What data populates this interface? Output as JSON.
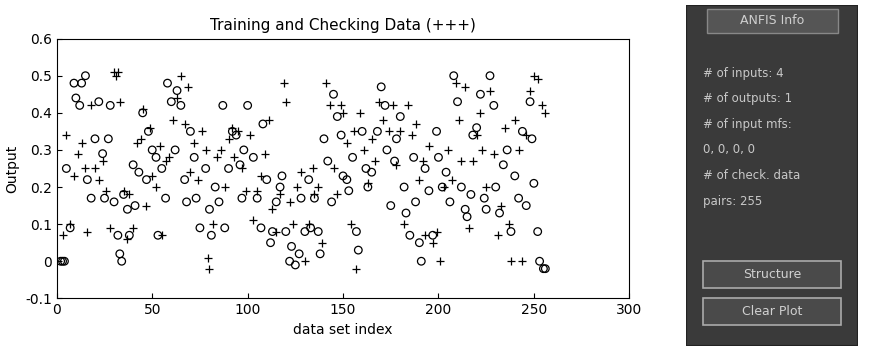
{
  "chart_data": {
    "type": "scatter",
    "title": "Training and Checking Data (+++)",
    "x_label": "data set index",
    "y_label": "Output",
    "xlim": [
      0,
      300
    ],
    "xticks": [
      0,
      50,
      100,
      150,
      200,
      250,
      300
    ],
    "ylim": [
      -0.1,
      0.6
    ],
    "yticks": [
      -0.1,
      0,
      0.1,
      0.2,
      0.3,
      0.4,
      0.5,
      0.6
    ],
    "grid": false,
    "series": [
      {
        "color": "#000000",
        "marker": "o",
        "x": [
          2,
          3,
          4,
          5,
          7,
          9,
          10,
          12,
          13,
          15,
          16,
          18,
          20,
          22,
          24,
          25,
          27,
          28,
          30,
          32,
          33,
          34,
          35,
          37,
          38,
          40,
          41,
          43,
          45,
          47,
          48,
          50,
          52,
          53,
          55,
          57,
          58,
          60,
          62,
          63,
          65,
          67,
          68,
          70,
          72,
          73,
          75,
          78,
          80,
          81,
          83,
          85,
          87,
          88,
          90,
          92,
          94,
          96,
          97,
          98,
          100,
          103,
          105,
          107,
          108,
          110,
          112,
          113,
          115,
          117,
          118,
          120,
          122,
          123,
          125,
          127,
          128,
          130,
          132,
          133,
          135,
          137,
          138,
          140,
          142,
          144,
          145,
          147,
          149,
          150,
          152,
          153,
          155,
          157,
          158,
          160,
          162,
          163,
          165,
          168,
          170,
          172,
          173,
          175,
          177,
          178,
          180,
          182,
          183,
          185,
          187,
          188,
          190,
          191,
          193,
          195,
          197,
          199,
          200,
          202,
          204,
          206,
          208,
          210,
          212,
          214,
          215,
          217,
          218,
          220,
          222,
          224,
          225,
          227,
          229,
          230,
          232,
          234,
          236,
          238,
          240,
          242,
          244,
          246,
          248,
          249,
          250,
          252,
          253,
          255,
          256
        ],
        "values": [
          0,
          0,
          0,
          0.25,
          0.09,
          0.48,
          0.44,
          0.42,
          0.48,
          0.5,
          0.22,
          0.17,
          0.33,
          0.43,
          0.29,
          0.17,
          0.33,
          0.42,
          0.16,
          0.07,
          0.02,
          0.0,
          0.18,
          0.14,
          0.07,
          0.26,
          0.15,
          0.24,
          0.4,
          0.22,
          0.35,
          0.3,
          0.28,
          0.07,
          0.25,
          0.17,
          0.48,
          0.43,
          0.3,
          0.46,
          0.42,
          0.22,
          0.16,
          0.35,
          0.28,
          0.17,
          0.09,
          0.25,
          0.14,
          0.07,
          0.2,
          0.16,
          0.42,
          0.09,
          0.25,
          0.35,
          0.34,
          0.26,
          0.17,
          0.3,
          0.42,
          0.28,
          0.17,
          0.09,
          0.37,
          0.22,
          0.05,
          0.08,
          0.16,
          0.2,
          0.23,
          0.08,
          0.0,
          0.04,
          -0.01,
          0.02,
          0.17,
          0.08,
          0.22,
          0.09,
          0.17,
          0.08,
          0.02,
          0.33,
          0.27,
          0.16,
          0.45,
          0.39,
          0.34,
          0.23,
          0.22,
          0.19,
          0.28,
          0.08,
          0.03,
          0.35,
          0.25,
          0.2,
          0.24,
          0.35,
          0.47,
          0.42,
          0.3,
          0.15,
          0.27,
          0.33,
          0.39,
          0.2,
          0.13,
          0.07,
          0.28,
          0.16,
          0.05,
          0.0,
          0.25,
          0.19,
          0.07,
          0.35,
          0.28,
          0.2,
          0.24,
          0.16,
          0.5,
          0.43,
          0.2,
          0.14,
          0.12,
          0.18,
          0.34,
          0.36,
          0.45,
          0.17,
          0.14,
          0.5,
          0.42,
          0.2,
          0.13,
          0.26,
          0.3,
          0.08,
          0.23,
          0.17,
          0.35,
          0.15,
          0.43,
          0.33,
          0.21,
          0.08,
          0.0,
          -0.02,
          -0.02
        ]
      },
      {
        "color": "#000000",
        "marker": "+",
        "x": [
          3,
          5,
          7,
          9,
          11,
          13,
          15,
          16,
          18,
          20,
          22,
          24,
          26,
          28,
          30,
          31,
          32,
          33,
          35,
          37,
          38,
          40,
          42,
          44,
          45,
          47,
          49,
          50,
          52,
          54,
          55,
          57,
          59,
          61,
          63,
          65,
          67,
          69,
          70,
          72,
          74,
          76,
          78,
          79,
          80,
          82,
          84,
          86,
          88,
          90,
          92,
          93,
          95,
          97,
          99,
          101,
          103,
          105,
          107,
          109,
          111,
          113,
          115,
          117,
          119,
          120,
          122,
          124,
          126,
          128,
          130,
          132,
          134,
          135,
          137,
          139,
          141,
          143,
          145,
          147,
          149,
          150,
          152,
          154,
          156,
          157,
          159,
          161,
          163,
          165,
          167,
          169,
          171,
          174,
          176,
          178,
          180,
          182,
          184,
          186,
          188,
          190,
          192,
          193,
          195,
          197,
          199,
          201,
          203,
          205,
          207,
          209,
          211,
          212,
          214,
          216,
          218,
          220,
          222,
          223,
          225,
          227,
          229,
          231,
          233,
          235,
          237,
          238,
          240,
          242,
          244,
          246,
          248,
          250,
          252,
          254,
          256
        ],
        "values": [
          0.07,
          0.34,
          0.1,
          0.23,
          0.29,
          0.32,
          0.25,
          0.08,
          0.42,
          0.25,
          0.22,
          0.27,
          0.19,
          0.09,
          0.51,
          0.5,
          0.51,
          0.43,
          0.19,
          0.06,
          0.18,
          0.09,
          0.32,
          0.33,
          0.41,
          0.15,
          0.36,
          0.23,
          0.2,
          0.31,
          0.07,
          0.27,
          0.28,
          0.38,
          0.44,
          0.5,
          0.37,
          0.47,
          0.24,
          0.32,
          0.22,
          0.35,
          0.3,
          0.01,
          -0.02,
          0.1,
          0.28,
          0.3,
          0.2,
          0.33,
          0.36,
          0.28,
          0.35,
          0.25,
          0.19,
          0.34,
          0.11,
          0.19,
          0.23,
          0.29,
          0.38,
          0.14,
          0.08,
          0.18,
          0.48,
          0.43,
          0.16,
          0.1,
          0.2,
          0.24,
          0.0,
          0.1,
          0.25,
          0.18,
          0.2,
          0.05,
          0.48,
          0.42,
          0.25,
          0.18,
          0.42,
          0.4,
          0.32,
          0.1,
          0.35,
          -0.02,
          0.4,
          0.3,
          0.21,
          0.33,
          0.27,
          0.43,
          0.38,
          0.35,
          0.42,
          0.26,
          0.35,
          0.1,
          0.42,
          0.34,
          0.37,
          0.22,
          0.27,
          0.07,
          0.31,
          0.05,
          0.08,
          0.0,
          0.2,
          0.3,
          0.22,
          0.48,
          0.38,
          0.27,
          0.47,
          0.09,
          0.27,
          0.34,
          0.4,
          0.3,
          0.2,
          0.46,
          0.29,
          0.07,
          0.15,
          0.36,
          0.1,
          0.0,
          0.38,
          0.3,
          0.0,
          0.34,
          0.46,
          0.5,
          0.49,
          0.42,
          0.4
        ]
      }
    ]
  },
  "panel": {
    "title": "ANFIS Info",
    "lines": [
      "# of inputs: 4",
      "# of outputs: 1",
      "# of input mfs:",
      "0, 0, 0, 0",
      "# of check. data",
      "pairs: 255"
    ],
    "buttons": [
      "Structure",
      "Clear Plot"
    ]
  }
}
